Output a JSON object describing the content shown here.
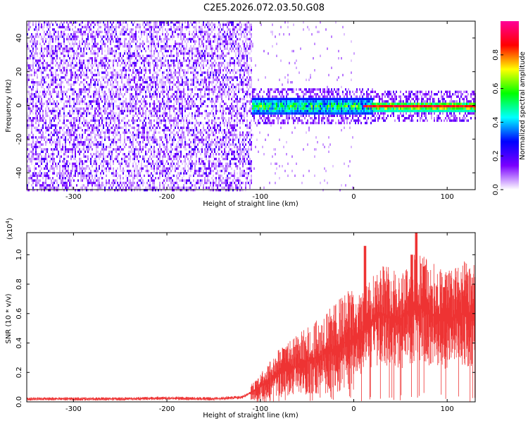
{
  "title": "C2E5.2026.072.03.50.G08",
  "chart_data": [
    {
      "type": "heatmap",
      "xlabel": "Height of straight line (km)",
      "ylabel": "Frequency (Hz)",
      "xlim": [
        -350,
        130
      ],
      "ylim": [
        -50,
        50
      ],
      "xticks": [
        -300,
        -200,
        -100,
        0,
        100
      ],
      "xtick_labels": [
        "-300",
        "-200",
        "-100",
        "0",
        "100"
      ],
      "yticks": [
        -40,
        -20,
        0,
        20,
        40
      ],
      "ytick_labels": [
        "-40",
        "-20",
        "0",
        "20",
        "40"
      ],
      "noise_region_x": [
        -350,
        -110
      ],
      "signal_region_x": [
        -110,
        130
      ],
      "signal_center_freq_hz": 0,
      "colorbar": {
        "label": "Normalized spectral amplitude",
        "range": [
          0,
          1
        ],
        "ticks": [
          0.0,
          0.2,
          0.4,
          0.6,
          0.8
        ],
        "tick_labels": [
          "0.0",
          "0.2",
          "0.4",
          "0.6",
          "0.8"
        ],
        "colors": [
          "#ffffff",
          "#7a00ff",
          "#0000ff",
          "#00ffff",
          "#00ff00",
          "#ffff00",
          "#ff0000",
          "#ff0099"
        ]
      }
    },
    {
      "type": "line",
      "xlabel": "Height of straight line (km)",
      "ylabel": "SNR (10 * v/v)",
      "scale_label": "(x10",
      "scale_exp": "4",
      "scale_close": ")",
      "xlim": [
        -350,
        130
      ],
      "ylim": [
        0,
        1.15
      ],
      "xticks": [
        -300,
        -200,
        -100,
        0,
        100
      ],
      "xtick_labels": [
        "-300",
        "-200",
        "-100",
        "0",
        "100"
      ],
      "yticks": [
        0.0,
        0.2,
        0.4,
        0.6,
        0.8,
        1.0
      ],
      "ytick_labels": [
        "0.0",
        "0.2",
        "0.4",
        "0.6",
        "0.8",
        "1.0"
      ],
      "series": [
        {
          "name": "SNR",
          "color": "#ee3333",
          "x": [
            -350,
            -300,
            -250,
            -200,
            -150,
            -120,
            -105,
            -90,
            -80,
            -70,
            -60,
            -50,
            -40,
            -30,
            -20,
            -10,
            0,
            10,
            20,
            30,
            40,
            50,
            60,
            70,
            80,
            90,
            100,
            110,
            120,
            130
          ],
          "y": [
            0.02,
            0.02,
            0.02,
            0.025,
            0.02,
            0.03,
            0.08,
            0.15,
            0.2,
            0.22,
            0.25,
            0.28,
            0.3,
            0.33,
            0.36,
            0.4,
            0.42,
            0.48,
            0.55,
            0.6,
            0.58,
            0.56,
            0.62,
            0.65,
            0.6,
            0.58,
            0.56,
            0.58,
            0.6,
            0.6
          ],
          "peaks": [
            {
              "x": -75,
              "y": 0.36
            },
            {
              "x": 12,
              "y": 1.06
            },
            {
              "x": 62,
              "y": 1.0
            },
            {
              "x": 67,
              "y": 1.15
            },
            {
              "x": 75,
              "y": 0.92
            },
            {
              "x": 97,
              "y": 0.78
            },
            {
              "x": 130,
              "y": 0.8
            }
          ]
        }
      ]
    }
  ]
}
